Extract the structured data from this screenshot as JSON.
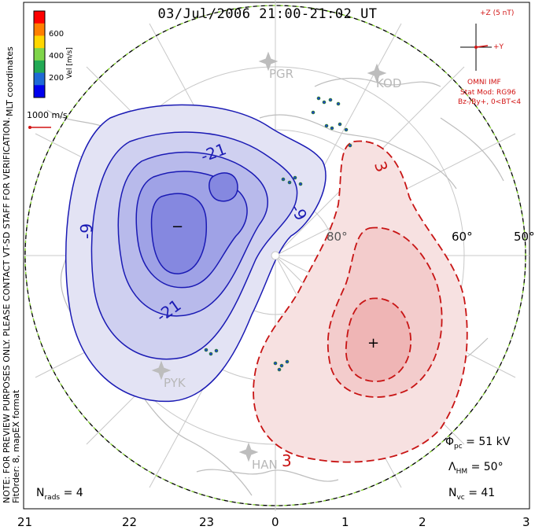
{
  "title": "03/Jul/2006 21:00-21:02 UT",
  "colorbar": {
    "label": "Vel [m/s]",
    "ticks": [
      "600",
      "400",
      "200"
    ],
    "colors": [
      "#ff0000",
      "#ff7f00",
      "#ffd700",
      "#7fd54a",
      "#22aa55",
      "#1f6ad6",
      "#0000ee"
    ]
  },
  "mlt_label": "MLT coordinates",
  "vector_scale": "1000 m/s",
  "imf": {
    "z_label": "+Z (5 nT)",
    "y_label": "+Y",
    "source": "OMNI IMF",
    "model": "Stat Mod: RG96",
    "condition": "Bz-/By+, 0<BT<4"
  },
  "stations": [
    "PGR",
    "KOD",
    "PYK",
    "HAN"
  ],
  "latitudes": [
    "80°",
    "60°",
    "50°"
  ],
  "contours": {
    "neg_labels": [
      "-21",
      "-9",
      "-9",
      "-21"
    ],
    "pos_labels": [
      "3",
      "3"
    ],
    "min_marker": "−",
    "max_marker": "+",
    "neg_color": "#1a1ab4",
    "pos_color": "#c81414"
  },
  "notes": {
    "preview": "NOTE: FOR PREVIEW PURPOSES ONLY. PLEASE CONTACT VT-SD STAFF FOR VERIFICATION.",
    "fit": "FitOrder: 8, mapEX format"
  },
  "stats": {
    "nrads_label": "N",
    "nrads_sub": "rads",
    "nrads_value": "= 4",
    "phi_label": "Φ",
    "phi_sub": "pc",
    "phi_value": "= 51 kV",
    "lam_label": "Λ",
    "lam_sub": "HM",
    "lam_value": "= 50°",
    "nvc_label": "N",
    "nvc_sub": "vc",
    "nvc_value": "= 41"
  },
  "mlt_ticks": [
    "21",
    "22",
    "23",
    "0",
    "1",
    "2",
    "3"
  ]
}
